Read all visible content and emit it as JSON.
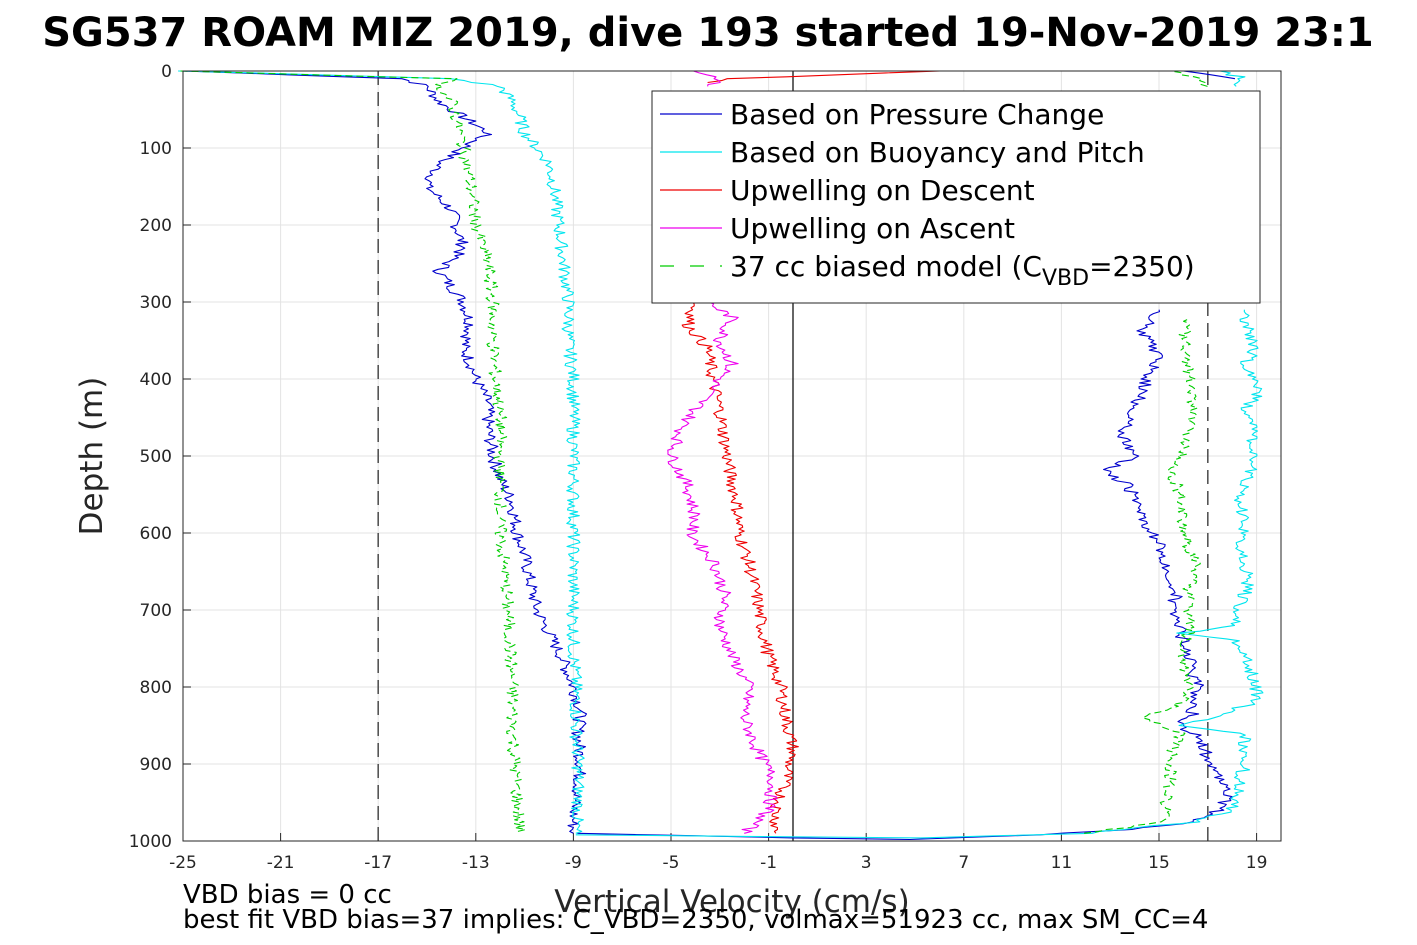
{
  "chart_data": {
    "type": "line",
    "title": "SG537 ROAM MIZ 2019, dive 193 started 19-Nov-2019 23:1",
    "xlabel": "Vertical Velocity (cm/s)",
    "ylabel": "Depth (m)",
    "xlim": [
      -25,
      20
    ],
    "ylim": [
      0,
      1000
    ],
    "y_reversed": true,
    "grid": true,
    "x_ticks": [
      "-25",
      "-21",
      "-17",
      "-13",
      "-9",
      "-5",
      "-1",
      "3",
      "7",
      "11",
      "15",
      "19"
    ],
    "x_tick_values": [
      -25,
      -21,
      -17,
      -13,
      -9,
      -5,
      -1,
      3,
      7,
      11,
      15,
      19
    ],
    "y_ticks": [
      "0",
      "100",
      "200",
      "300",
      "400",
      "500",
      "600",
      "700",
      "800",
      "900",
      "1000"
    ],
    "y_tick_values": [
      0,
      100,
      200,
      300,
      400,
      500,
      600,
      700,
      800,
      900,
      1000
    ],
    "reference_lines": {
      "dashed_x": [
        -17,
        17
      ],
      "solid_x": [
        0
      ]
    },
    "legend_position": "top-right",
    "legend": [
      {
        "label": "Based on Pressure Change",
        "color": "#0000cc",
        "style": "solid"
      },
      {
        "label": "Based on Buoyancy and Pitch",
        "color": "#00e5ee",
        "style": "solid"
      },
      {
        "label": "Upwelling on Descent",
        "color": "#ee0000",
        "style": "solid"
      },
      {
        "label": "Upwelling on Ascent",
        "color": "#ee00ee",
        "style": "solid"
      },
      {
        "label_prefix": "37 cc biased model (C",
        "label_sub": "VBD",
        "label_suffix": "=2350)",
        "color": "#00cc00",
        "style": "dashed"
      }
    ],
    "series": [
      {
        "name": "Based on Pressure Change",
        "color": "#0000cc",
        "segments": [
          {
            "depth": [
              0,
              10,
              20,
              40,
              60,
              80,
              100,
              120,
              150,
              180,
              200,
              230,
              260,
              280,
              300,
              330,
              360,
              380,
              400,
              430,
              460,
              500,
              530,
              560,
              600,
              630,
              660,
              700,
              730,
              760,
              800,
              830,
              860,
              900,
              930,
              960,
              990
            ],
            "v": [
              -25,
              -16,
              -15,
              -14.5,
              -13.5,
              -12.5,
              -13.5,
              -14.5,
              -15,
              -14,
              -13.8,
              -13.5,
              -14.5,
              -14,
              -13.5,
              -13.2,
              -13.5,
              -13.2,
              -13,
              -12.5,
              -12.5,
              -12.3,
              -12,
              -11.5,
              -11.3,
              -11,
              -10.8,
              -10.5,
              -10,
              -9.5,
              -9,
              -8.7,
              -8.8,
              -8.7,
              -8.8,
              -9,
              -9
            ]
          },
          {
            "depth": [
              990,
              996,
              998,
              992,
              985,
              975,
              960,
              940,
              920,
              900,
              880,
              860,
              850,
              840,
              820,
              800,
              780,
              760,
              740,
              720,
              700,
              680,
              660,
              640,
              620,
              600,
              580,
              560,
              540,
              520,
              500,
              470,
              440,
              400,
              370,
              340,
              310
            ],
            "v": [
              -9,
              0,
              5,
              10,
              14,
              16.5,
              17.5,
              17.8,
              17.5,
              17.2,
              16.8,
              16.5,
              15.8,
              16.3,
              16.5,
              16.6,
              16.4,
              16.2,
              16,
              15.8,
              15.5,
              15.7,
              15.5,
              15.3,
              15.1,
              14.7,
              14.3,
              14,
              13.8,
              12.8,
              14,
              13.5,
              14,
              14.5,
              15,
              14.3,
              15
            ]
          },
          {
            "depth": [
              10,
              5,
              0
            ],
            "v": [
              18,
              17,
              16
            ]
          }
        ]
      },
      {
        "name": "Based on Buoyancy and Pitch",
        "color": "#00e5ee",
        "segments": [
          {
            "depth": [
              0,
              10,
              20,
              40,
              60,
              80,
              100,
              120,
              150,
              200,
              250,
              300,
              350,
              400,
              450,
              500,
              550,
              600,
              650,
              700,
              750,
              800,
              850,
              900,
              950,
              990
            ],
            "v": [
              -25,
              -14,
              -12,
              -11.5,
              -11.2,
              -11,
              -10.5,
              -10,
              -9.8,
              -9.6,
              -9.4,
              -9.2,
              -9.2,
              -9,
              -9,
              -9,
              -9,
              -9,
              -9,
              -9,
              -9,
              -8.9,
              -8.9,
              -8.8,
              -8.8,
              -8.9
            ]
          },
          {
            "depth": [
              992,
              996,
              990,
              975,
              960,
              940,
              900,
              860,
              850,
              820,
              800,
              780,
              760,
              740,
              730,
              720,
              700,
              680,
              660,
              640,
              620,
              600,
              580,
              560,
              540,
              520,
              500,
              480,
              460,
              440,
              420,
              400,
              380,
              360,
              340,
              320,
              310
            ],
            "v": [
              -8.9,
              5,
              12,
              16.5,
              18,
              18.2,
              18.5,
              18.5,
              16,
              19,
              19,
              18.8,
              18.5,
              18.2,
              16,
              18,
              18.3,
              18.5,
              18.7,
              18.5,
              18.3,
              18.5,
              18.4,
              18.3,
              18.5,
              18.7,
              19,
              18.7,
              19,
              18.5,
              19,
              19,
              18.5,
              19,
              18.7,
              18.5,
              18.5
            ]
          },
          {
            "depth": [
              20,
              10,
              0
            ],
            "v": [
              18,
              18.5,
              17.5
            ]
          }
        ]
      },
      {
        "name": "Upwelling on Descent",
        "color": "#ee0000",
        "segments": [
          {
            "depth": [
              0,
              5,
              10,
              15
            ],
            "v": [
              6,
              2,
              -2.5,
              -3.5
            ]
          },
          {
            "depth": [
              300,
              330,
              360,
              400,
              440,
              480,
              520,
              560,
              600,
              640,
              680,
              720,
              760,
              800,
              840,
              880,
              920,
              960,
              990
            ],
            "v": [
              -4,
              -4.3,
              -3.5,
              -3.3,
              -3,
              -2.8,
              -2.6,
              -2.3,
              -2.2,
              -1.8,
              -1.5,
              -1.3,
              -1,
              -0.5,
              -0.3,
              0,
              -0.3,
              -0.7,
              -0.7
            ]
          }
        ]
      },
      {
        "name": "Upwelling on Ascent",
        "color": "#ee00ee",
        "segments": [
          {
            "depth": [
              0,
              10,
              20
            ],
            "v": [
              -4,
              -3,
              -3.5
            ]
          },
          {
            "depth": [
              300,
              320,
              350,
              380,
              420,
              460,
              500,
              540,
              580,
              600,
              640,
              680,
              720,
              760,
              800,
              840,
              880,
              920,
              960,
              990
            ],
            "v": [
              -3.5,
              -2.5,
              -3,
              -2.5,
              -3.5,
              -4.5,
              -5,
              -4.3,
              -4,
              -4.2,
              -3.2,
              -2.8,
              -3,
              -2.5,
              -1.8,
              -2,
              -1.5,
              -0.8,
              -1,
              -2
            ]
          }
        ]
      },
      {
        "name": "37 cc biased model",
        "color": "#00cc00",
        "dashed": true,
        "segments": [
          {
            "depth": [
              0,
              10,
              20,
              40,
              60,
              100,
              150,
              200,
              250,
              300,
              350,
              400,
              450,
              500,
              550,
              600,
              650,
              700,
              750,
              800,
              850,
              900,
              950,
              990
            ],
            "v": [
              -25,
              -14,
              -14.5,
              -14,
              -13.8,
              -13.5,
              -13.2,
              -13,
              -12.5,
              -12.3,
              -12.3,
              -12.2,
              -12,
              -12,
              -12,
              -12,
              -11.8,
              -11.7,
              -11.6,
              -11.5,
              -11.5,
              -11.4,
              -11.3,
              -11.2
            ]
          },
          {
            "depth": [
              990,
              975,
              950,
              920,
              900,
              880,
              860,
              840,
              820,
              800,
              760,
              720,
              680,
              640,
              600,
              560,
              520,
              480,
              440,
              400,
              360,
              320
            ],
            "v": [
              12,
              15.2,
              15.3,
              15.5,
              15.5,
              15.6,
              15.8,
              14.5,
              16,
              16.2,
              16,
              16.3,
              16.2,
              16.5,
              16,
              16,
              15.5,
              16.2,
              16.4,
              16.3,
              16,
              16.2
            ]
          },
          {
            "depth": [
              20,
              10,
              0
            ],
            "v": [
              17,
              16.5,
              15.5
            ]
          }
        ]
      }
    ]
  },
  "footer": {
    "line1": "VBD bias = 0 cc",
    "line2": "best fit VBD bias=37 implies: C_VBD=2350, volmax=51923 cc, max SM_CC=4"
  }
}
